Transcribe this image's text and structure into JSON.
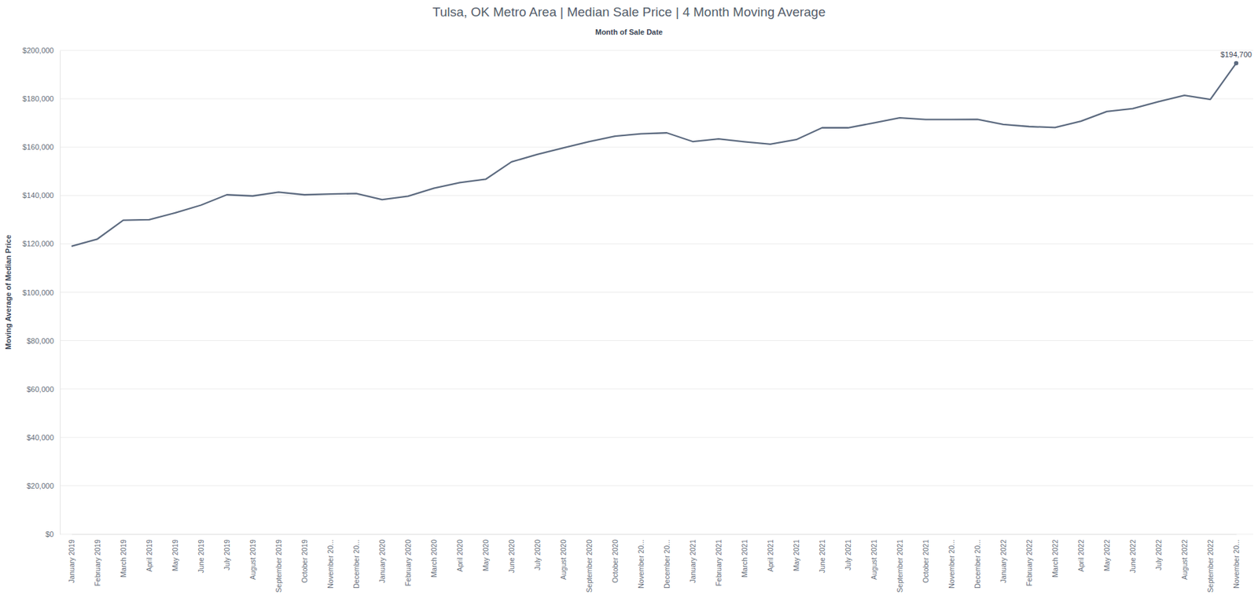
{
  "chart_data": {
    "type": "line",
    "title": "Tulsa, OK Metro Area | Median Sale Price | 4 Month Moving Average",
    "subtitle": "Month of Sale Date",
    "y_label": "Moving Average of Median Price",
    "categories": [
      "January 2019",
      "February 2019",
      "March 2019",
      "April 2019",
      "May 2019",
      "June 2019",
      "July 2019",
      "August 2019",
      "September 2019",
      "October 2019",
      "November 20...",
      "December 20...",
      "January 2020",
      "February 2020",
      "March 2020",
      "April 2020",
      "May 2020",
      "June 2020",
      "July 2020",
      "August 2020",
      "September 2020",
      "October 2020",
      "November 20...",
      "December 20...",
      "January 2021",
      "February 2021",
      "March 2021",
      "April 2021",
      "May 2021",
      "June 2021",
      "July 2021",
      "August 2021",
      "September 2021",
      "October 2021",
      "November 20...",
      "December 20...",
      "January 2022",
      "February 2022",
      "March 2022",
      "April 2022",
      "May 2022",
      "June 2022",
      "July 2022",
      "August 2022",
      "September 2022",
      "November 20..."
    ],
    "values": [
      119000,
      122000,
      129800,
      130000,
      132800,
      136000,
      140300,
      139800,
      141400,
      140300,
      140600,
      140800,
      138300,
      139700,
      143000,
      145300,
      146700,
      153900,
      157000,
      159700,
      162300,
      164500,
      165500,
      165900,
      162300,
      163400,
      162200,
      161200,
      163100,
      168000,
      168000,
      170000,
      172100,
      171400,
      171400,
      171500,
      169400,
      168500,
      168100,
      170700,
      174700,
      175900,
      178800,
      181400,
      179700,
      194700
    ],
    "value_labels": [
      null,
      null,
      null,
      null,
      null,
      null,
      null,
      null,
      null,
      null,
      null,
      null,
      null,
      null,
      null,
      null,
      null,
      null,
      null,
      null,
      null,
      null,
      null,
      null,
      null,
      null,
      null,
      null,
      null,
      null,
      null,
      null,
      null,
      null,
      null,
      null,
      null,
      null,
      null,
      null,
      null,
      null,
      null,
      null,
      null,
      "$194,700"
    ],
    "data_labels": true,
    "color": "#5d6b80",
    "ylim": [
      0,
      200000
    ],
    "yticks": [
      {
        "value": 0,
        "label": "$0"
      },
      {
        "value": 20000,
        "label": "$20,000"
      },
      {
        "value": 40000,
        "label": "$40,000"
      },
      {
        "value": 60000,
        "label": "$60,000"
      },
      {
        "value": 80000,
        "label": "$80,000"
      },
      {
        "value": 100000,
        "label": "$100,000"
      },
      {
        "value": 120000,
        "label": "$120,000"
      },
      {
        "value": 140000,
        "label": "$140,000"
      },
      {
        "value": 160000,
        "label": "$160,000"
      },
      {
        "value": 180000,
        "label": "$180,000"
      },
      {
        "value": 200000,
        "label": "$200,000"
      }
    ],
    "grid": true
  }
}
